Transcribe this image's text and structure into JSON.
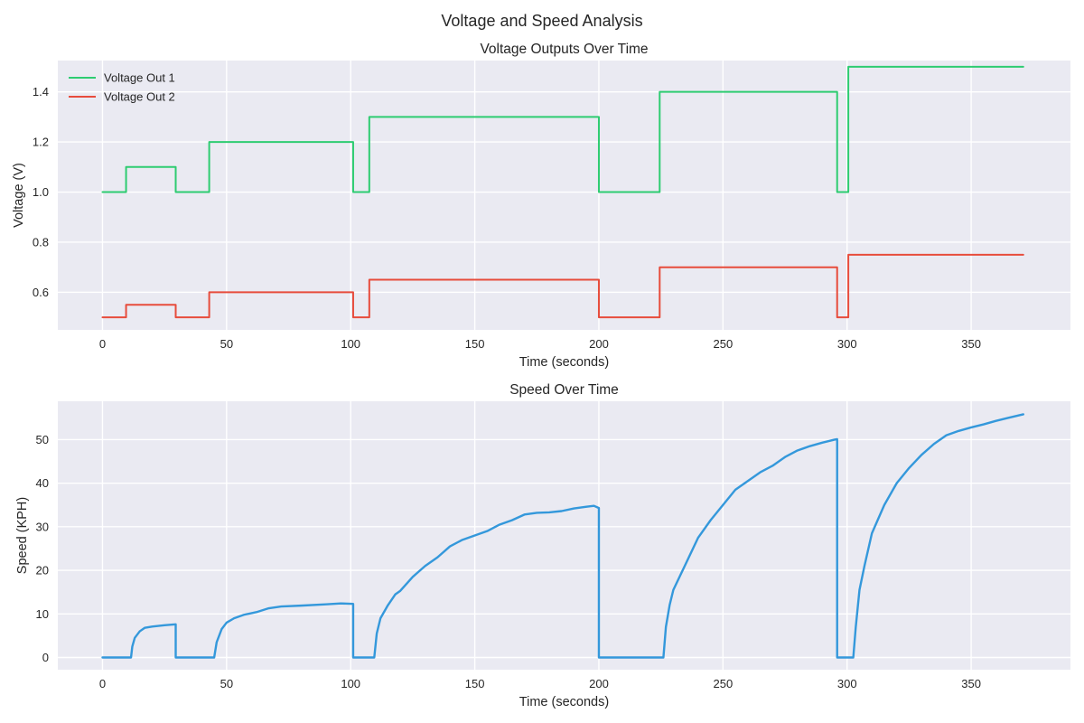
{
  "figure": {
    "title": "Voltage and Speed Analysis",
    "background": "#ffffff",
    "axes_background": "#eaeaf2",
    "grid_color": "#ffffff"
  },
  "chart_data": [
    {
      "type": "line",
      "title": "Voltage Outputs Over Time",
      "xlabel": "Time (seconds)",
      "ylabel": "Voltage (V)",
      "xlim": [
        -18,
        390
      ],
      "ylim": [
        0.45,
        1.525
      ],
      "xticks": [
        0,
        50,
        100,
        150,
        200,
        250,
        300,
        350
      ],
      "yticks": [
        0.6,
        0.8,
        1.0,
        1.2,
        1.4
      ],
      "ytick_decimals": 1,
      "grid": true,
      "legend": "upper-left",
      "step": true,
      "series": [
        {
          "name": "Voltage Out 1",
          "color": "#2ecc71",
          "points": [
            [
              0,
              1.0
            ],
            [
              9.5,
              1.0
            ],
            [
              9.5,
              1.1
            ],
            [
              29.5,
              1.1
            ],
            [
              29.5,
              1.0
            ],
            [
              43,
              1.0
            ],
            [
              43,
              1.2
            ],
            [
              101,
              1.2
            ],
            [
              101,
              1.0
            ],
            [
              107.5,
              1.0
            ],
            [
              107.5,
              1.3
            ],
            [
              200,
              1.3
            ],
            [
              200,
              1.0
            ],
            [
              224.5,
              1.0
            ],
            [
              224.5,
              1.4
            ],
            [
              296,
              1.4
            ],
            [
              296,
              1.0
            ],
            [
              300.5,
              1.0
            ],
            [
              300.5,
              1.5
            ],
            [
              371,
              1.5
            ]
          ]
        },
        {
          "name": "Voltage Out 2",
          "color": "#e74c3c",
          "points": [
            [
              0,
              0.5
            ],
            [
              9.5,
              0.5
            ],
            [
              9.5,
              0.55
            ],
            [
              29.5,
              0.55
            ],
            [
              29.5,
              0.5
            ],
            [
              43,
              0.5
            ],
            [
              43,
              0.6
            ],
            [
              101,
              0.6
            ],
            [
              101,
              0.5
            ],
            [
              107.5,
              0.5
            ],
            [
              107.5,
              0.65
            ],
            [
              200,
              0.65
            ],
            [
              200,
              0.5
            ],
            [
              224.5,
              0.5
            ],
            [
              224.5,
              0.7
            ],
            [
              296,
              0.7
            ],
            [
              296,
              0.5
            ],
            [
              300.5,
              0.5
            ],
            [
              300.5,
              0.75
            ],
            [
              371,
              0.75
            ]
          ]
        }
      ]
    },
    {
      "type": "line",
      "title": "Speed Over Time",
      "xlabel": "Time (seconds)",
      "ylabel": "Speed (KPH)",
      "xlim": [
        -18,
        390
      ],
      "ylim": [
        -2.8,
        58.8
      ],
      "xticks": [
        0,
        50,
        100,
        150,
        200,
        250,
        300,
        350
      ],
      "yticks": [
        0,
        10,
        20,
        30,
        40,
        50
      ],
      "ytick_decimals": 0,
      "grid": true,
      "series": [
        {
          "name": "Speed",
          "color": "#3498db",
          "points": [
            [
              0,
              0
            ],
            [
              11.5,
              0
            ],
            [
              12,
              2.5
            ],
            [
              13,
              4.5
            ],
            [
              15,
              6.0
            ],
            [
              17,
              6.8
            ],
            [
              20,
              7.1
            ],
            [
              25,
              7.4
            ],
            [
              29.5,
              7.6
            ],
            [
              29.5,
              0
            ],
            [
              45,
              0
            ],
            [
              46,
              3.5
            ],
            [
              48,
              6.5
            ],
            [
              50,
              8.0
            ],
            [
              53,
              9.0
            ],
            [
              57,
              9.8
            ],
            [
              62,
              10.4
            ],
            [
              67,
              11.3
            ],
            [
              72,
              11.7
            ],
            [
              80,
              11.9
            ],
            [
              90,
              12.2
            ],
            [
              96,
              12.4
            ],
            [
              101,
              12.3
            ],
            [
              101,
              0
            ],
            [
              109.5,
              0
            ],
            [
              110.5,
              5.5
            ],
            [
              112,
              9.0
            ],
            [
              115,
              12.0
            ],
            [
              118,
              14.5
            ],
            [
              120,
              15.3
            ],
            [
              125,
              18.5
            ],
            [
              130,
              21.0
            ],
            [
              135,
              23.0
            ],
            [
              140,
              25.5
            ],
            [
              145,
              27.0
            ],
            [
              150,
              28.0
            ],
            [
              155,
              29.0
            ],
            [
              160,
              30.5
            ],
            [
              165,
              31.5
            ],
            [
              170,
              32.8
            ],
            [
              175,
              33.2
            ],
            [
              180,
              33.3
            ],
            [
              185,
              33.6
            ],
            [
              190,
              34.2
            ],
            [
              195,
              34.6
            ],
            [
              198,
              34.8
            ],
            [
              200,
              34.3
            ],
            [
              200,
              0
            ],
            [
              226,
              0
            ],
            [
              227,
              7.0
            ],
            [
              228.5,
              12.0
            ],
            [
              230,
              15.5
            ],
            [
              235,
              21.5
            ],
            [
              240,
              27.5
            ],
            [
              245,
              31.5
            ],
            [
              250,
              35.0
            ],
            [
              255,
              38.5
            ],
            [
              260,
              40.5
            ],
            [
              265,
              42.5
            ],
            [
              270,
              44.0
            ],
            [
              275,
              46.0
            ],
            [
              280,
              47.5
            ],
            [
              285,
              48.5
            ],
            [
              290,
              49.3
            ],
            [
              295,
              50.0
            ],
            [
              296,
              50.1
            ],
            [
              296,
              0
            ],
            [
              302.5,
              0
            ],
            [
              303.5,
              7.0
            ],
            [
              305,
              15.5
            ],
            [
              307,
              21.0
            ],
            [
              310,
              28.5
            ],
            [
              315,
              35.0
            ],
            [
              320,
              40.0
            ],
            [
              325,
              43.5
            ],
            [
              330,
              46.5
            ],
            [
              335,
              49.0
            ],
            [
              340,
              51.0
            ],
            [
              345,
              52.0
            ],
            [
              350,
              52.8
            ],
            [
              355,
              53.5
            ],
            [
              360,
              54.3
            ],
            [
              365,
              55.0
            ],
            [
              371,
              55.8
            ]
          ]
        }
      ]
    }
  ]
}
